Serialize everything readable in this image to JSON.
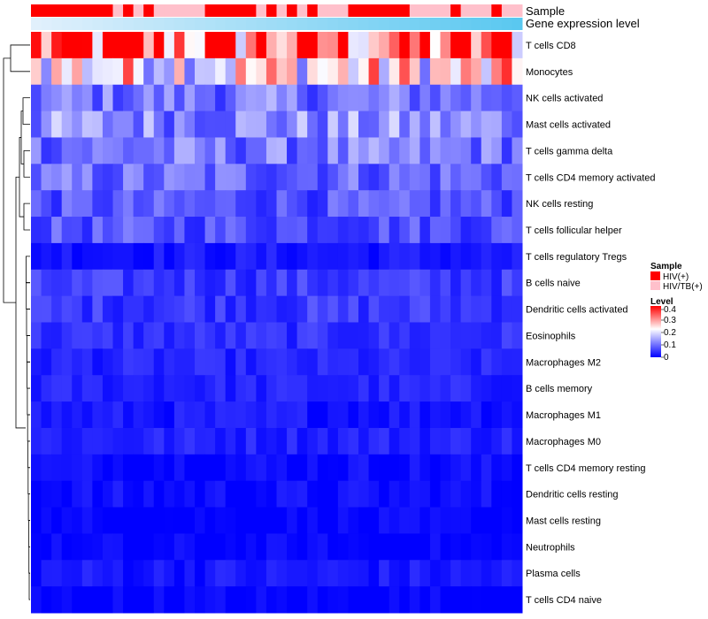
{
  "chart_data": {
    "type": "heatmap",
    "annotation_tracks": [
      "Sample",
      "Gene expression level"
    ],
    "sample_groups": [
      "1",
      "1",
      "1",
      "1",
      "1",
      "1",
      "1",
      "1",
      "2",
      "1",
      "2",
      "1",
      "2",
      "2",
      "2",
      "2",
      "2",
      "1",
      "1",
      "1",
      "1",
      "1",
      "2",
      "1",
      "2",
      "1",
      "2",
      "1",
      "2",
      "2",
      "2",
      "1",
      "1",
      "1",
      "1",
      "1",
      "1",
      "2",
      "2",
      "2",
      "2",
      "1",
      "2",
      "2",
      "2",
      "1",
      "2",
      "2"
    ],
    "gene_expression_level": "gradient from very light blue (left) to light blue (right) across all 48 samples",
    "rows": [
      "T cells CD8",
      "Monocytes",
      "NK cells activated",
      "Mast cells activated",
      "T cells gamma delta",
      "T cells CD4 memory activated",
      "NK cells resting",
      "T cells follicular helper",
      "T cells regulatory  Tregs",
      "B cells naive",
      "Dendritic cells activated",
      "Eosinophils",
      "Macrophages M2",
      "B cells memory",
      "Macrophages M1",
      "Macrophages M0",
      "T cells CD4 memory resting",
      "Dendritic cells resting",
      "Mast cells resting",
      "Neutrophils",
      "Plasma cells",
      "T cells CD4 naive"
    ],
    "row_means": [
      0.33,
      0.23,
      0.1,
      0.12,
      0.1,
      0.09,
      0.07,
      0.07,
      0.02,
      0.05,
      0.05,
      0.04,
      0.03,
      0.03,
      0.02,
      0.03,
      0.01,
      0.01,
      0.0,
      0.0,
      0.02,
      0.0
    ],
    "values": [],
    "n_samples": 48,
    "color_scale": {
      "min": 0,
      "max": 0.4,
      "low": "#0000FF",
      "mid": "#FFFFFF",
      "high": "#FF0000",
      "midpoint": 0.22
    },
    "legend": {
      "sample_title": "Sample",
      "sample_items": [
        {
          "label": "HIV(+)",
          "color": "#FF0000"
        },
        {
          "label": "HIV/TB(+)",
          "color": "#FFC0CB"
        }
      ],
      "level_title": "Level",
      "level_ticks": [
        "0.4",
        "0.3",
        "0.2",
        "0.1",
        "0"
      ]
    }
  }
}
